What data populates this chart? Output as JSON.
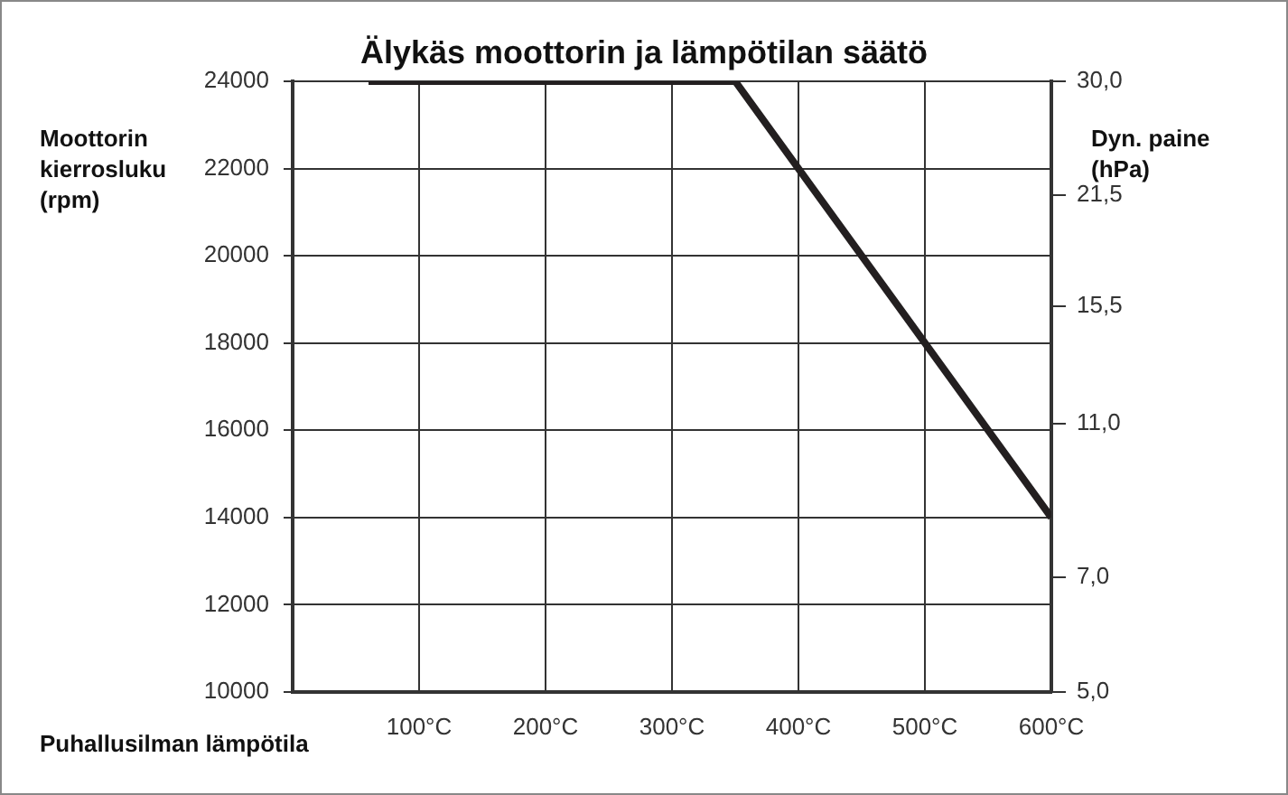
{
  "chart_data": {
    "type": "line",
    "title": "Älykäs moottorin ja lämpötilan säätö",
    "xlabel": "Puhallusilman lämpötila",
    "ylabel": "Moottorin kierrosluku (rpm)",
    "y2label": "Dyn. paine (hPa)",
    "x": [
      60,
      350,
      400,
      500,
      600
    ],
    "series": [
      {
        "color": "#231f20",
        "values": [
          24000,
          24000,
          22000,
          18000,
          14000
        ]
      }
    ],
    "xlim": [
      0,
      600
    ],
    "xticks": [
      {
        "value": 100,
        "label": "100°C"
      },
      {
        "value": 200,
        "label": "200°C"
      },
      {
        "value": 300,
        "label": "300°C"
      },
      {
        "value": 400,
        "label": "400°C"
      },
      {
        "value": 500,
        "label": "500°C"
      },
      {
        "value": 600,
        "label": "600°C"
      }
    ],
    "ylim": [
      10000,
      24000
    ],
    "yticks": [
      10000,
      12000,
      14000,
      16000,
      18000,
      20000,
      22000,
      24000
    ],
    "y2lim": [
      5,
      30
    ],
    "y2ticks": [
      {
        "value": 5,
        "label": "5,0"
      },
      {
        "value": 7,
        "label": "7,0"
      },
      {
        "value": 11,
        "label": "11,0"
      },
      {
        "value": 15.5,
        "label": "15,5"
      },
      {
        "value": 21.5,
        "label": "21,5"
      },
      {
        "value": 30,
        "label": "30,0"
      }
    ],
    "log": "y2",
    "grid": true,
    "legend": false,
    "marker": "none",
    "line_style": "solid"
  }
}
